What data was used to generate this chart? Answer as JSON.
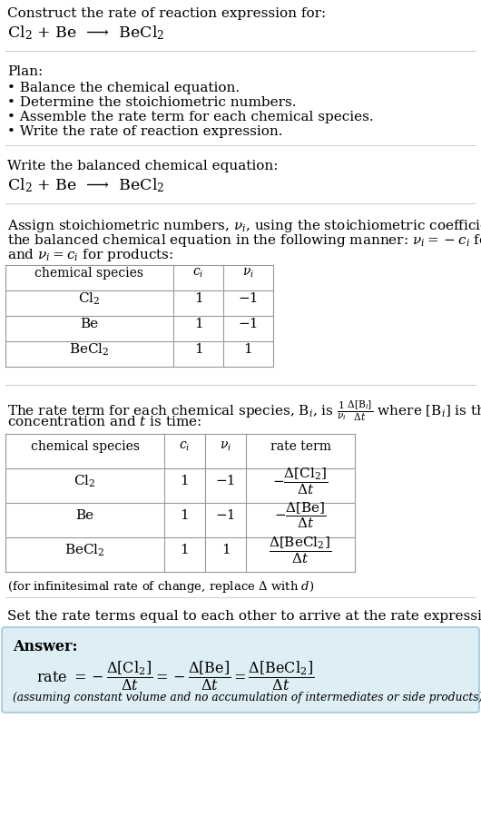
{
  "title_line1": "Construct the rate of reaction expression for:",
  "title_line2": "Cl$_2$ + Be  ⟶  BeCl$_2$",
  "plan_header": "Plan:",
  "plan_items": [
    "• Balance the chemical equation.",
    "• Determine the stoichiometric numbers.",
    "• Assemble the rate term for each chemical species.",
    "• Write the rate of reaction expression."
  ],
  "section2_header": "Write the balanced chemical equation:",
  "section2_eq": "Cl$_2$ + Be  ⟶  BeCl$_2$",
  "section3_header_parts": [
    "Assign stoichiometric numbers, $\\nu_i$, using the stoichiometric coefficients, $c_i$, from",
    "the balanced chemical equation in the following manner: $\\nu_i = -c_i$ for reactants",
    "and $\\nu_i = c_i$ for products:"
  ],
  "table1_headers": [
    "chemical species",
    "$c_i$",
    "$\\nu_i$"
  ],
  "table1_rows": [
    [
      "Cl$_2$",
      "1",
      "−1"
    ],
    [
      "Be",
      "1",
      "−1"
    ],
    [
      "BeCl$_2$",
      "1",
      "1"
    ]
  ],
  "section4_header_parts": [
    "The rate term for each chemical species, B$_i$, is $\\frac{1}{\\nu_i}\\frac{\\Delta[{\\rm B}_i]}{\\Delta t}$ where [B$_i$] is the amount",
    "concentration and $t$ is time:"
  ],
  "table2_headers": [
    "chemical species",
    "$c_i$",
    "$\\nu_i$",
    "rate term"
  ],
  "table2_rows": [
    [
      "Cl$_2$",
      "1",
      "−1",
      "$-\\dfrac{\\Delta[\\mathrm{Cl_2}]}{\\Delta t}$"
    ],
    [
      "Be",
      "1",
      "−1",
      "$-\\dfrac{\\Delta[\\mathrm{Be}]}{\\Delta t}$"
    ],
    [
      "BeCl$_2$",
      "1",
      "1",
      "$\\dfrac{\\Delta[\\mathrm{BeCl_2}]}{\\Delta t}$"
    ]
  ],
  "infinitesimal_note": "(for infinitesimal rate of change, replace Δ with $d$)",
  "section5_header": "Set the rate terms equal to each other to arrive at the rate expression:",
  "answer_label": "Answer:",
  "answer_eq": "rate $= -\\dfrac{\\Delta[\\mathrm{Cl_2}]}{\\Delta t} = -\\dfrac{\\Delta[\\mathrm{Be}]}{\\Delta t} = \\dfrac{\\Delta[\\mathrm{BeCl_2}]}{\\Delta t}$",
  "answer_note": "(assuming constant volume and no accumulation of intermediates or side products)",
  "bg_color": "#ffffff",
  "answer_box_color": "#ddeef5",
  "table_border_color": "#999999",
  "divider_color": "#cccccc",
  "text_color": "#000000",
  "font_size": 11,
  "small_font_size": 9
}
